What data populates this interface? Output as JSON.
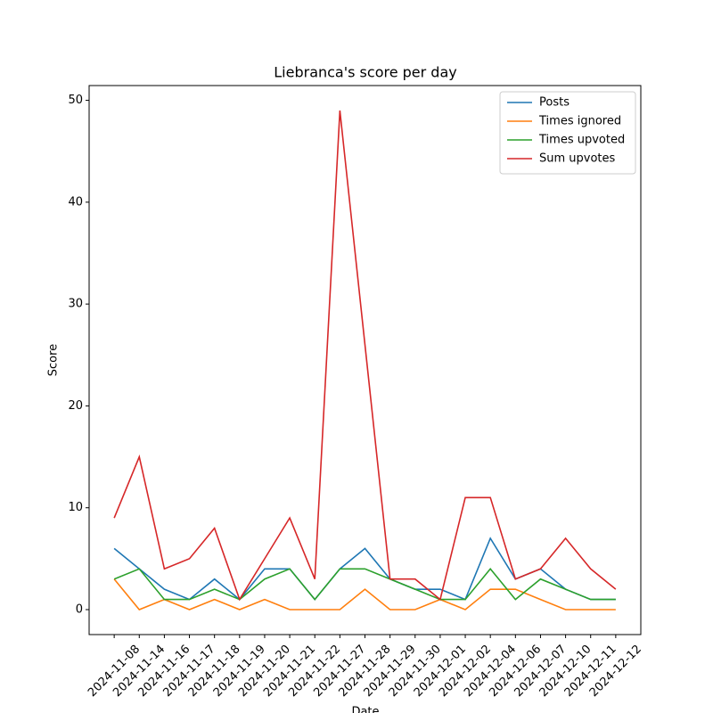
{
  "chart_data": {
    "type": "line",
    "title": "Liebranca's score per day",
    "xlabel": "Date",
    "ylabel": "Score",
    "categories": [
      "2024-11-08",
      "2024-11-14",
      "2024-11-16",
      "2024-11-17",
      "2024-11-18",
      "2024-11-19",
      "2024-11-20",
      "2024-11-21",
      "2024-11-22",
      "2024-11-27",
      "2024-11-28",
      "2024-11-29",
      "2024-11-30",
      "2024-12-01",
      "2024-12-02",
      "2024-12-04",
      "2024-12-06",
      "2024-12-07",
      "2024-12-10",
      "2024-12-11",
      "2024-12-12"
    ],
    "series": [
      {
        "name": "Posts",
        "color": "#1f77b4",
        "values": [
          6,
          4,
          2,
          1,
          3,
          1,
          4,
          4,
          1,
          4,
          6,
          3,
          2,
          2,
          1,
          7,
          3,
          4,
          2,
          1,
          1
        ]
      },
      {
        "name": "Times ignored",
        "color": "#ff7f0e",
        "values": [
          3,
          0,
          1,
          0,
          1,
          0,
          1,
          0,
          0,
          0,
          2,
          0,
          0,
          1,
          0,
          2,
          2,
          1,
          0,
          0,
          0
        ]
      },
      {
        "name": "Times upvoted",
        "color": "#2ca02c",
        "values": [
          3,
          4,
          1,
          1,
          2,
          1,
          3,
          4,
          1,
          4,
          4,
          3,
          2,
          1,
          1,
          4,
          1,
          3,
          2,
          1,
          1
        ]
      },
      {
        "name": "Sum upvotes",
        "color": "#d62728",
        "values": [
          9,
          15,
          4,
          5,
          8,
          1,
          5,
          9,
          3,
          49,
          26,
          3,
          3,
          1,
          11,
          11,
          3,
          4,
          7,
          4,
          2
        ]
      }
    ],
    "ylim": [
      -2.45,
      51.45
    ],
    "yticks": [
      0,
      10,
      20,
      30,
      40,
      50
    ],
    "legend": "upper right"
  }
}
